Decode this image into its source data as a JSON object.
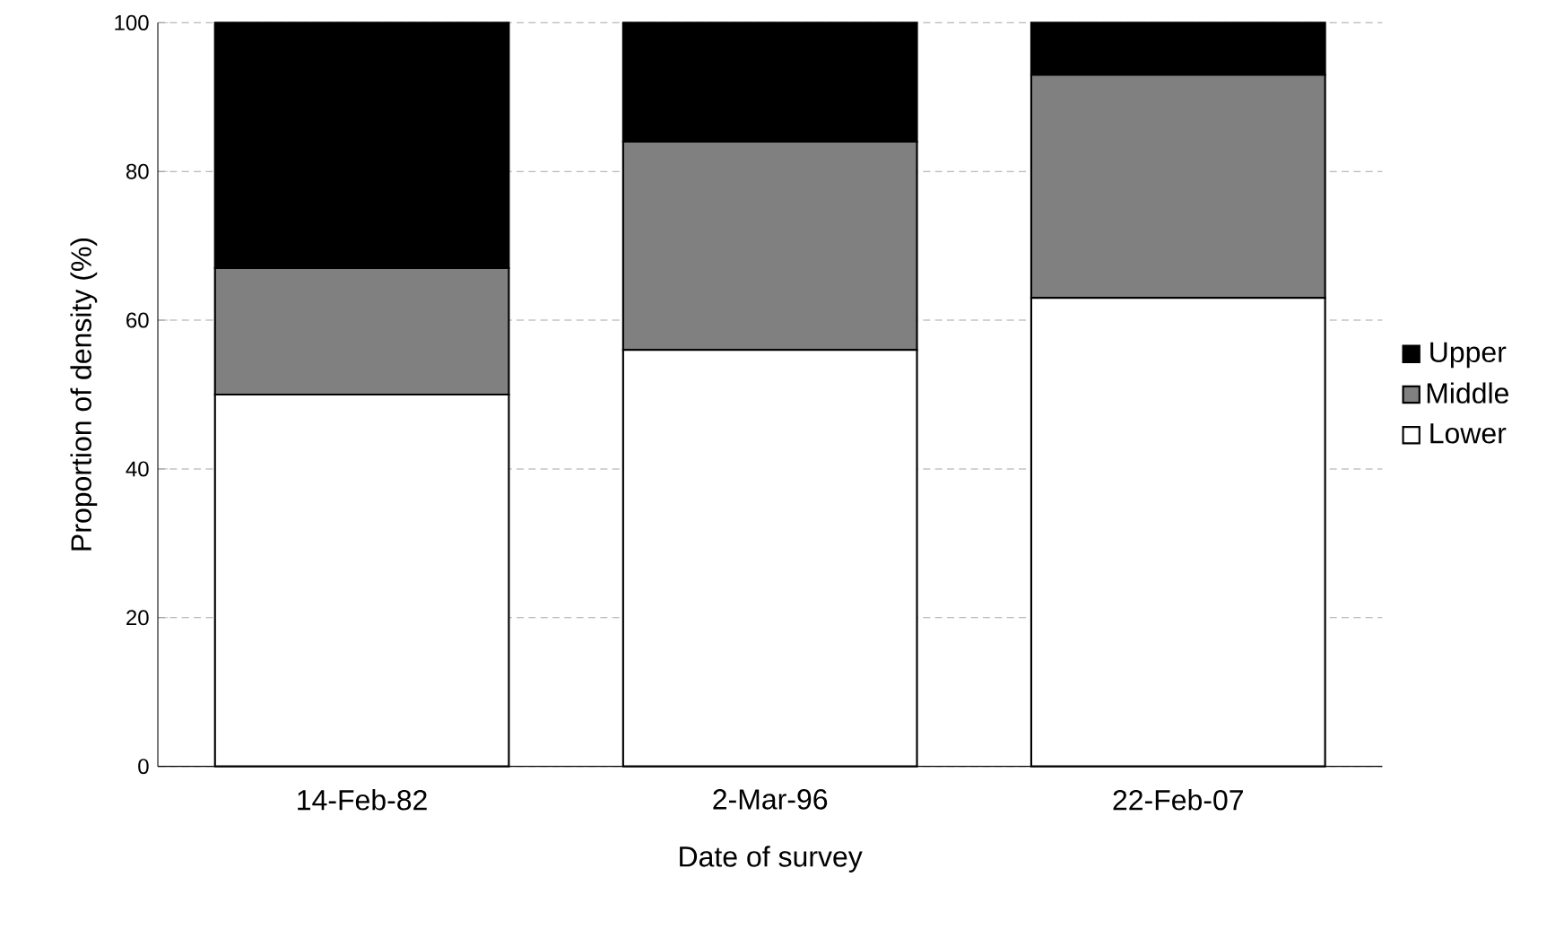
{
  "chart_data": {
    "type": "bar",
    "stacked": true,
    "xlabel": "Date of survey",
    "ylabel": "Proportion of density (%)",
    "categories": [
      "14-Feb-82",
      "2-Mar-96",
      "22-Feb-07"
    ],
    "series": [
      {
        "name": "Lower",
        "color": "#ffffff",
        "values": [
          50,
          56,
          63
        ]
      },
      {
        "name": "Middle",
        "color": "#808080",
        "values": [
          17,
          28,
          30
        ]
      },
      {
        "name": "Upper",
        "color": "#000000",
        "values": [
          33,
          16,
          7
        ]
      }
    ],
    "ylim": [
      0,
      100
    ],
    "yticks": [
      0,
      20,
      40,
      60,
      80,
      100
    ],
    "grid": "y",
    "legend": "right"
  }
}
